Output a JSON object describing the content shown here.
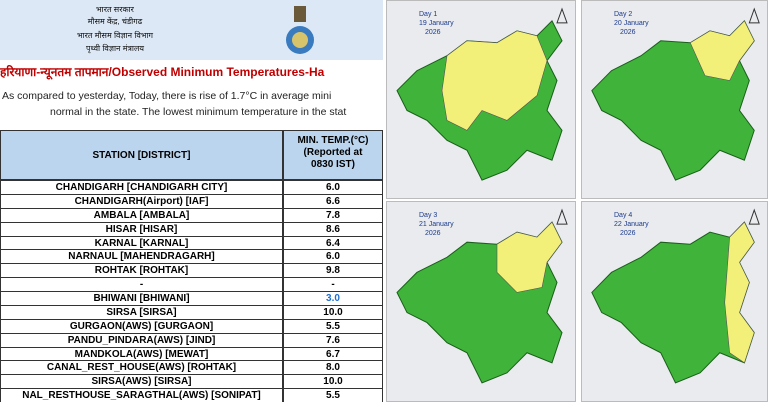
{
  "header": {
    "lines": [
      "भारत सरकार",
      "मौसम केंद्र, चंडीगढ",
      "भारत मौसम विज्ञान विभाग",
      "पृथ्वी विज्ञान मंत्रालय"
    ]
  },
  "title": "हरियाणा-न्यूनतम तापमान/Observed Minimum Temperatures-Ha",
  "paragraph": [
    "As compared to yesterday, Today, there is rise of 1.7°C in average mini",
    "normal in the state. The lowest minimum temperature in the stat"
  ],
  "table": {
    "header": {
      "station": "STATION [DISTRICT]",
      "temp": [
        "MIN. TEMP.(°C)",
        "(Reported at",
        "0830 IST)"
      ]
    },
    "rows": [
      [
        "CHANDIGARH [CHANDIGARH CITY]",
        "6.0"
      ],
      [
        "CHANDIGARH(Airport) [IAF]",
        "6.6"
      ],
      [
        "AMBALA [AMBALA]",
        "7.8"
      ],
      [
        "HISAR [HISAR]",
        "8.6"
      ],
      [
        "KARNAL [KARNAL]",
        "6.4"
      ],
      [
        "NARNAUL [MAHENDRAGARH]",
        "6.0"
      ],
      [
        "ROHTAK [ROHTAK]",
        "9.8"
      ],
      [
        "-",
        "-"
      ],
      [
        "BHIWANI [BHIWANI]",
        "3.0"
      ],
      [
        "SIRSA [SIRSA]",
        "10.0"
      ],
      [
        "GURGAON(AWS) [GURGAON]",
        "5.5"
      ],
      [
        "PANDU_PINDARA(AWS) [JIND]",
        "7.6"
      ],
      [
        "MANDKOLA(AWS) [MEWAT]",
        "6.7"
      ],
      [
        "CANAL_REST_HOUSE(AWS) [ROHTAK]",
        "8.0"
      ],
      [
        "SIRSA(AWS) [SIRSA]",
        "10.0"
      ],
      [
        "NAL_RESTHOUSE_SARAGTHAL(AWS) [SONIPAT]",
        "5.5"
      ]
    ]
  },
  "maps": [
    {
      "day": "Day 1",
      "date": "19 January",
      "year": "2026"
    },
    {
      "day": "Day 2",
      "date": "20 January",
      "year": "2026"
    },
    {
      "day": "Day 3",
      "date": "21 January",
      "year": "2026"
    },
    {
      "day": "Day 4",
      "date": "22 January",
      "year": "2026"
    }
  ]
}
